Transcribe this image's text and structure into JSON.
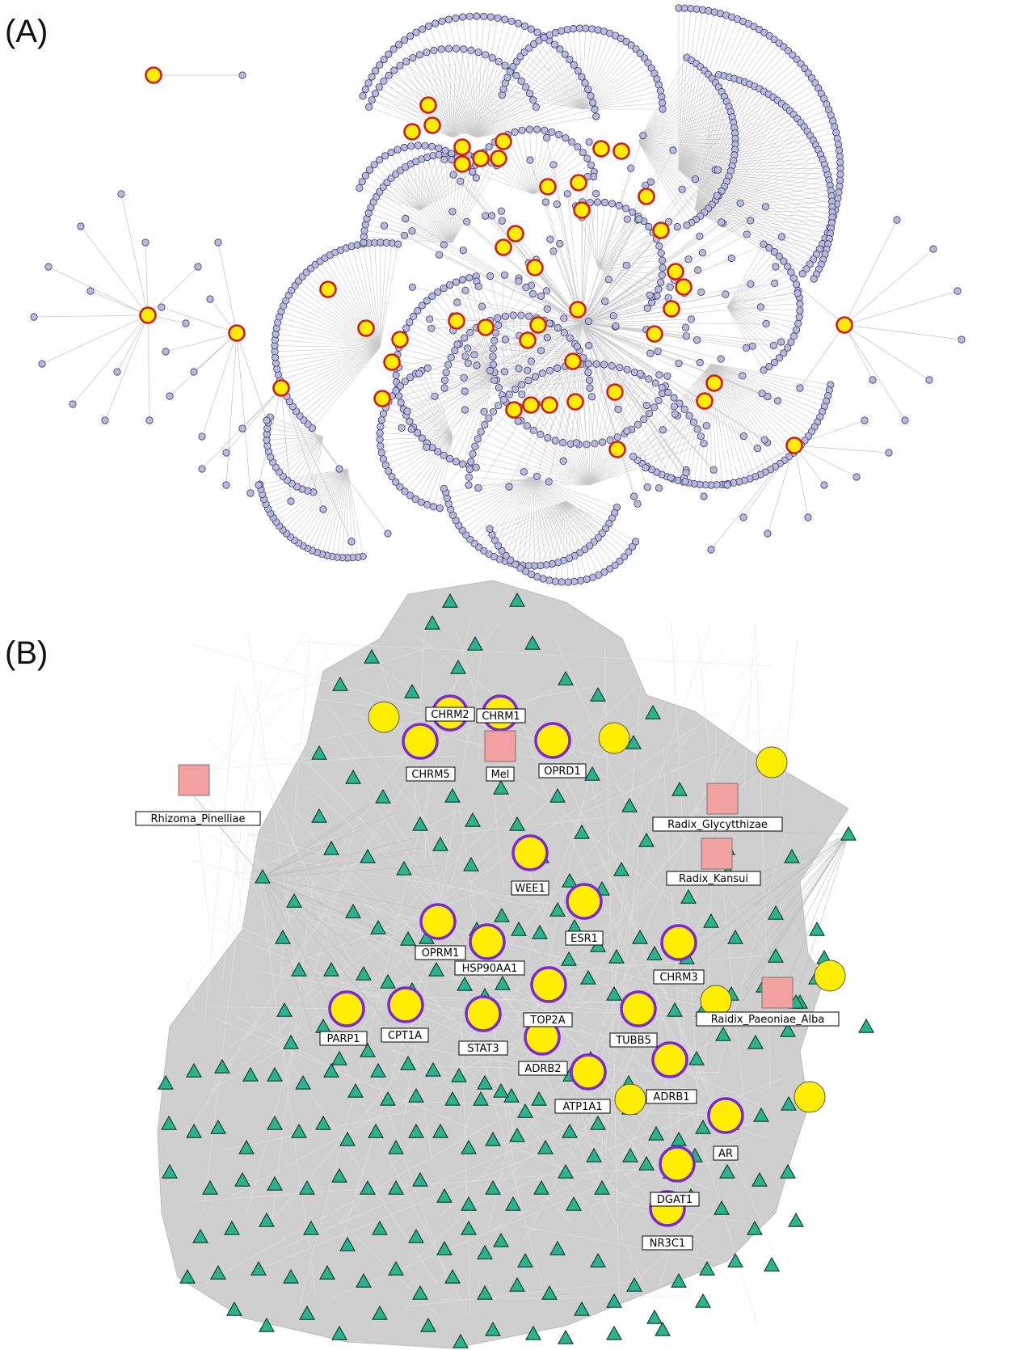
{
  "figure": {
    "panel_a": {
      "label": "(A)",
      "colors": {
        "node": "#b9b9dc",
        "node_stroke": "#3a3a6a",
        "hub": "#ffee00",
        "hub_stroke": "#d21c1c",
        "edge": "#c9c9c9"
      }
    },
    "panel_b": {
      "label": "(B)",
      "colors": {
        "triangle": "#2db38c",
        "triangle_stroke": "#0a3a2a",
        "circle": "#ffee00",
        "ring": "#7a2ad0",
        "square": "#f2a0a0",
        "edge_bg": "#cfcfcf"
      },
      "target_labels": [
        "CHRM2",
        "CHRM1",
        "CHRM5",
        "OPRD1",
        "WEE1",
        "ESR1",
        "OPRM1",
        "HSP90AA1",
        "CHRM3",
        "TOP2A",
        "PARP1",
        "CPT1A",
        "STAT3",
        "TUBB5",
        "ADRB2",
        "ATP1A1",
        "ADRB1",
        "AR",
        "DGAT1",
        "NR3C1"
      ],
      "herb_labels": [
        "Mel",
        "Rhizoma_Pinelliae",
        "Radix_Glycytthizae",
        "Radix_Kansui",
        "Raidix_Paeoniae_Alba"
      ]
    }
  }
}
